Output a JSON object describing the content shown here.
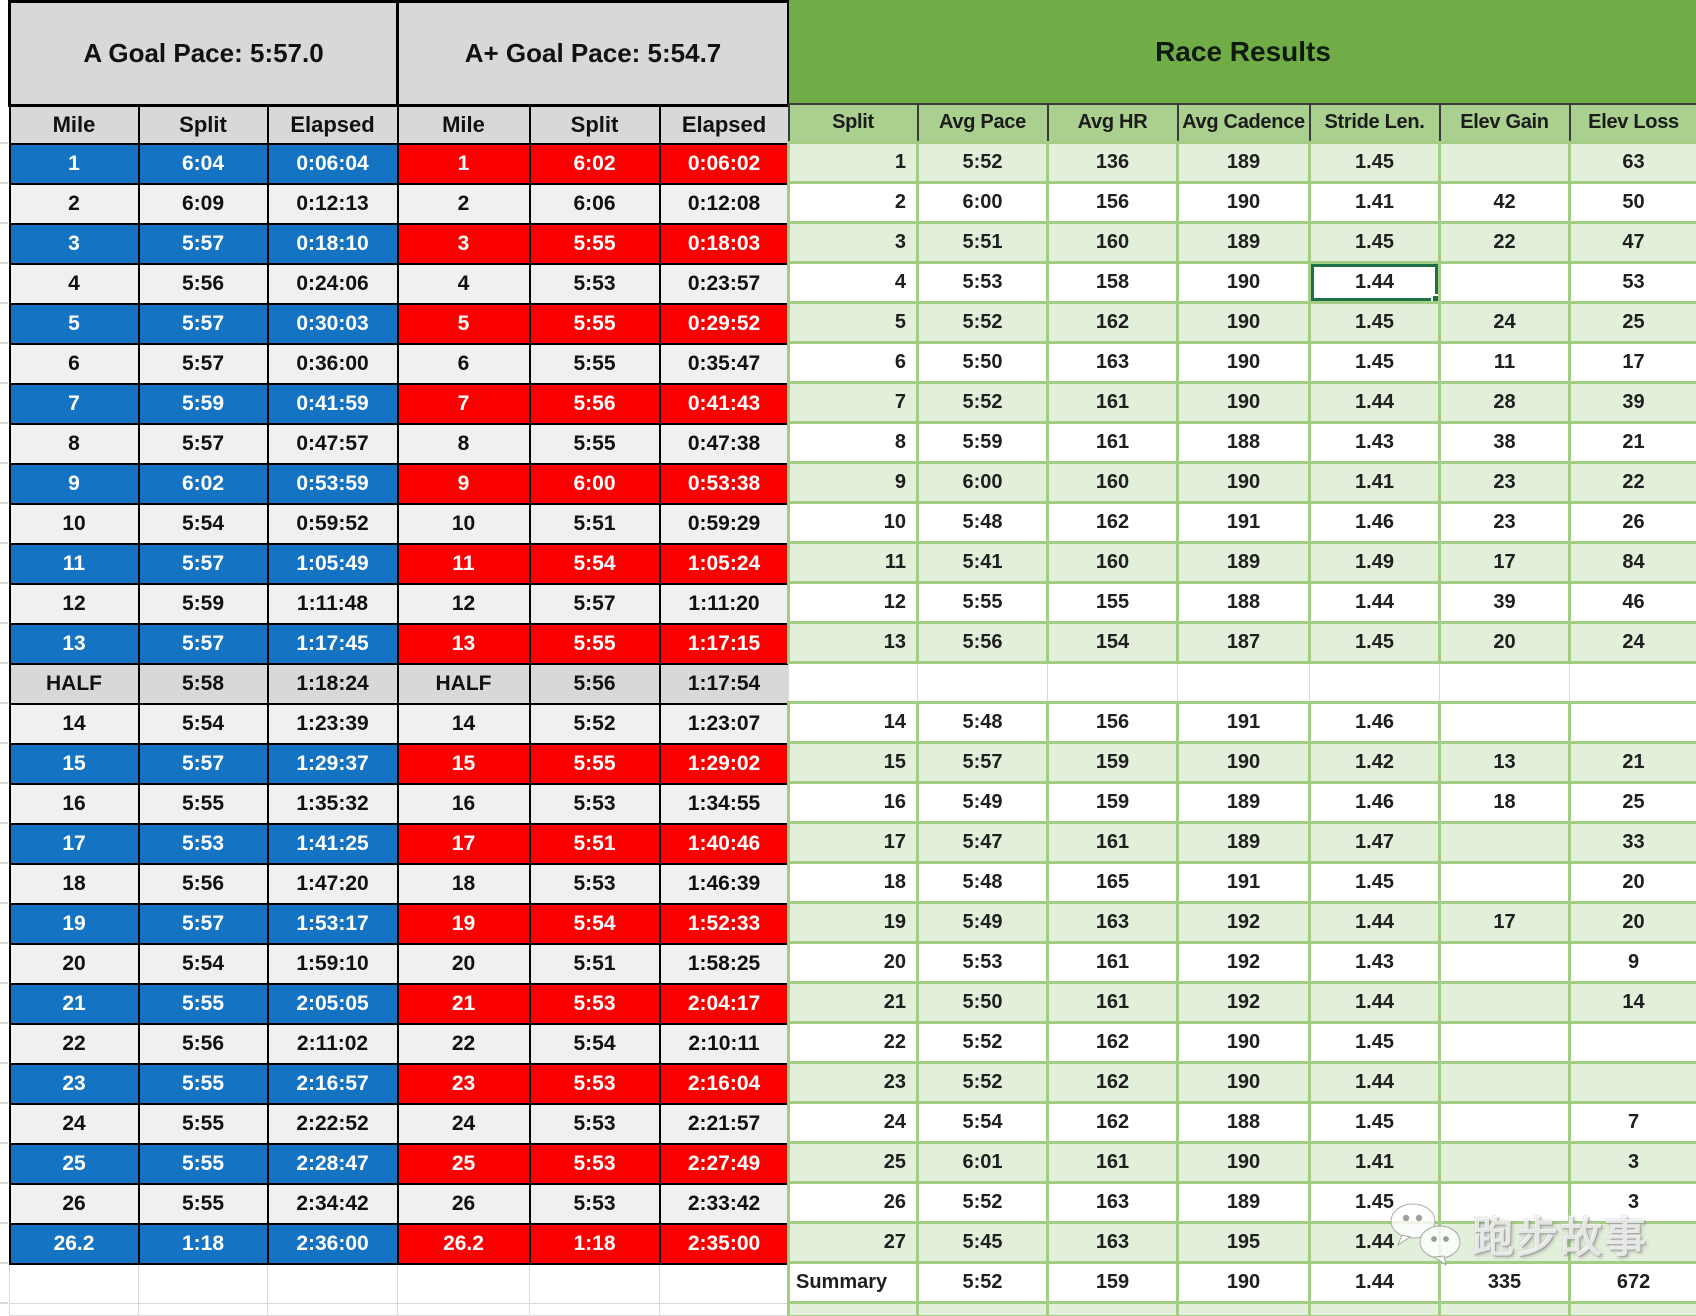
{
  "goal_a": {
    "title": "A Goal Pace: 5:57.0",
    "headers": [
      "Mile",
      "Split",
      "Elapsed"
    ],
    "highlight_color": "#1573C4",
    "rows": [
      {
        "mile": "1",
        "split": "6:04",
        "elapsed": "0:06:04",
        "highlight": true
      },
      {
        "mile": "2",
        "split": "6:09",
        "elapsed": "0:12:13",
        "highlight": false
      },
      {
        "mile": "3",
        "split": "5:57",
        "elapsed": "0:18:10",
        "highlight": true
      },
      {
        "mile": "4",
        "split": "5:56",
        "elapsed": "0:24:06",
        "highlight": false
      },
      {
        "mile": "5",
        "split": "5:57",
        "elapsed": "0:30:03",
        "highlight": true
      },
      {
        "mile": "6",
        "split": "5:57",
        "elapsed": "0:36:00",
        "highlight": false
      },
      {
        "mile": "7",
        "split": "5:59",
        "elapsed": "0:41:59",
        "highlight": true
      },
      {
        "mile": "8",
        "split": "5:57",
        "elapsed": "0:47:57",
        "highlight": false
      },
      {
        "mile": "9",
        "split": "6:02",
        "elapsed": "0:53:59",
        "highlight": true
      },
      {
        "mile": "10",
        "split": "5:54",
        "elapsed": "0:59:52",
        "highlight": false
      },
      {
        "mile": "11",
        "split": "5:57",
        "elapsed": "1:05:49",
        "highlight": true
      },
      {
        "mile": "12",
        "split": "5:59",
        "elapsed": "1:11:48",
        "highlight": false
      },
      {
        "mile": "13",
        "split": "5:57",
        "elapsed": "1:17:45",
        "highlight": true
      },
      {
        "mile": "HALF",
        "split": "5:58",
        "elapsed": "1:18:24",
        "highlight": false,
        "half": true
      },
      {
        "mile": "14",
        "split": "5:54",
        "elapsed": "1:23:39",
        "highlight": false
      },
      {
        "mile": "15",
        "split": "5:57",
        "elapsed": "1:29:37",
        "highlight": true
      },
      {
        "mile": "16",
        "split": "5:55",
        "elapsed": "1:35:32",
        "highlight": false
      },
      {
        "mile": "17",
        "split": "5:53",
        "elapsed": "1:41:25",
        "highlight": true
      },
      {
        "mile": "18",
        "split": "5:56",
        "elapsed": "1:47:20",
        "highlight": false
      },
      {
        "mile": "19",
        "split": "5:57",
        "elapsed": "1:53:17",
        "highlight": true
      },
      {
        "mile": "20",
        "split": "5:54",
        "elapsed": "1:59:10",
        "highlight": false
      },
      {
        "mile": "21",
        "split": "5:55",
        "elapsed": "2:05:05",
        "highlight": true
      },
      {
        "mile": "22",
        "split": "5:56",
        "elapsed": "2:11:02",
        "highlight": false
      },
      {
        "mile": "23",
        "split": "5:55",
        "elapsed": "2:16:57",
        "highlight": true
      },
      {
        "mile": "24",
        "split": "5:55",
        "elapsed": "2:22:52",
        "highlight": false
      },
      {
        "mile": "25",
        "split": "5:55",
        "elapsed": "2:28:47",
        "highlight": true
      },
      {
        "mile": "26",
        "split": "5:55",
        "elapsed": "2:34:42",
        "highlight": false
      },
      {
        "mile": "26.2",
        "split": "1:18",
        "elapsed": "2:36:00",
        "highlight": true
      }
    ]
  },
  "goal_aplus": {
    "title": "A+ Goal Pace: 5:54.7",
    "headers": [
      "Mile",
      "Split",
      "Elapsed"
    ],
    "highlight_color": "#FB0000",
    "rows": [
      {
        "mile": "1",
        "split": "6:02",
        "elapsed": "0:06:02",
        "highlight": true
      },
      {
        "mile": "2",
        "split": "6:06",
        "elapsed": "0:12:08",
        "highlight": false
      },
      {
        "mile": "3",
        "split": "5:55",
        "elapsed": "0:18:03",
        "highlight": true
      },
      {
        "mile": "4",
        "split": "5:53",
        "elapsed": "0:23:57",
        "highlight": false
      },
      {
        "mile": "5",
        "split": "5:55",
        "elapsed": "0:29:52",
        "highlight": true
      },
      {
        "mile": "6",
        "split": "5:55",
        "elapsed": "0:35:47",
        "highlight": false
      },
      {
        "mile": "7",
        "split": "5:56",
        "elapsed": "0:41:43",
        "highlight": true
      },
      {
        "mile": "8",
        "split": "5:55",
        "elapsed": "0:47:38",
        "highlight": false
      },
      {
        "mile": "9",
        "split": "6:00",
        "elapsed": "0:53:38",
        "highlight": true
      },
      {
        "mile": "10",
        "split": "5:51",
        "elapsed": "0:59:29",
        "highlight": false
      },
      {
        "mile": "11",
        "split": "5:54",
        "elapsed": "1:05:24",
        "highlight": true
      },
      {
        "mile": "12",
        "split": "5:57",
        "elapsed": "1:11:20",
        "highlight": false
      },
      {
        "mile": "13",
        "split": "5:55",
        "elapsed": "1:17:15",
        "highlight": true
      },
      {
        "mile": "HALF",
        "split": "5:56",
        "elapsed": "1:17:54",
        "highlight": false,
        "half": true
      },
      {
        "mile": "14",
        "split": "5:52",
        "elapsed": "1:23:07",
        "highlight": false
      },
      {
        "mile": "15",
        "split": "5:55",
        "elapsed": "1:29:02",
        "highlight": true
      },
      {
        "mile": "16",
        "split": "5:53",
        "elapsed": "1:34:55",
        "highlight": false
      },
      {
        "mile": "17",
        "split": "5:51",
        "elapsed": "1:40:46",
        "highlight": true
      },
      {
        "mile": "18",
        "split": "5:53",
        "elapsed": "1:46:39",
        "highlight": false
      },
      {
        "mile": "19",
        "split": "5:54",
        "elapsed": "1:52:33",
        "highlight": true
      },
      {
        "mile": "20",
        "split": "5:51",
        "elapsed": "1:58:25",
        "highlight": false
      },
      {
        "mile": "21",
        "split": "5:53",
        "elapsed": "2:04:17",
        "highlight": true
      },
      {
        "mile": "22",
        "split": "5:54",
        "elapsed": "2:10:11",
        "highlight": false
      },
      {
        "mile": "23",
        "split": "5:53",
        "elapsed": "2:16:04",
        "highlight": true
      },
      {
        "mile": "24",
        "split": "5:53",
        "elapsed": "2:21:57",
        "highlight": false
      },
      {
        "mile": "25",
        "split": "5:53",
        "elapsed": "2:27:49",
        "highlight": true
      },
      {
        "mile": "26",
        "split": "5:53",
        "elapsed": "2:33:42",
        "highlight": false
      },
      {
        "mile": "26.2",
        "split": "1:18",
        "elapsed": "2:35:00",
        "highlight": true
      }
    ]
  },
  "race_results": {
    "title": "Race Results",
    "headers": [
      "Split",
      "Avg Pace",
      "Avg HR",
      "Avg Cadence",
      "Stride Len.",
      "Elev Gain",
      "Elev Loss"
    ],
    "selected_cell": {
      "split": "4",
      "column": "stride_len"
    },
    "rows": [
      {
        "split": "1",
        "avg_pace": "5:52",
        "avg_hr": "136",
        "avg_cadence": "189",
        "stride_len": "1.45",
        "elev_gain": "",
        "elev_loss": "63",
        "shaded": true
      },
      {
        "split": "2",
        "avg_pace": "6:00",
        "avg_hr": "156",
        "avg_cadence": "190",
        "stride_len": "1.41",
        "elev_gain": "42",
        "elev_loss": "50",
        "shaded": false
      },
      {
        "split": "3",
        "avg_pace": "5:51",
        "avg_hr": "160",
        "avg_cadence": "189",
        "stride_len": "1.45",
        "elev_gain": "22",
        "elev_loss": "47",
        "shaded": true
      },
      {
        "split": "4",
        "avg_pace": "5:53",
        "avg_hr": "158",
        "avg_cadence": "190",
        "stride_len": "1.44",
        "elev_gain": "",
        "elev_loss": "53",
        "shaded": false
      },
      {
        "split": "5",
        "avg_pace": "5:52",
        "avg_hr": "162",
        "avg_cadence": "190",
        "stride_len": "1.45",
        "elev_gain": "24",
        "elev_loss": "25",
        "shaded": true
      },
      {
        "split": "6",
        "avg_pace": "5:50",
        "avg_hr": "163",
        "avg_cadence": "190",
        "stride_len": "1.45",
        "elev_gain": "11",
        "elev_loss": "17",
        "shaded": false
      },
      {
        "split": "7",
        "avg_pace": "5:52",
        "avg_hr": "161",
        "avg_cadence": "190",
        "stride_len": "1.44",
        "elev_gain": "28",
        "elev_loss": "39",
        "shaded": true
      },
      {
        "split": "8",
        "avg_pace": "5:59",
        "avg_hr": "161",
        "avg_cadence": "188",
        "stride_len": "1.43",
        "elev_gain": "38",
        "elev_loss": "21",
        "shaded": false
      },
      {
        "split": "9",
        "avg_pace": "6:00",
        "avg_hr": "160",
        "avg_cadence": "190",
        "stride_len": "1.41",
        "elev_gain": "23",
        "elev_loss": "22",
        "shaded": true
      },
      {
        "split": "10",
        "avg_pace": "5:48",
        "avg_hr": "162",
        "avg_cadence": "191",
        "stride_len": "1.46",
        "elev_gain": "23",
        "elev_loss": "26",
        "shaded": false
      },
      {
        "split": "11",
        "avg_pace": "5:41",
        "avg_hr": "160",
        "avg_cadence": "189",
        "stride_len": "1.49",
        "elev_gain": "17",
        "elev_loss": "84",
        "shaded": true
      },
      {
        "split": "12",
        "avg_pace": "5:55",
        "avg_hr": "155",
        "avg_cadence": "188",
        "stride_len": "1.44",
        "elev_gain": "39",
        "elev_loss": "46",
        "shaded": false
      },
      {
        "split": "13",
        "avg_pace": "5:56",
        "avg_hr": "154",
        "avg_cadence": "187",
        "stride_len": "1.45",
        "elev_gain": "20",
        "elev_loss": "24",
        "shaded": true
      },
      {
        "blank": true
      },
      {
        "split": "14",
        "avg_pace": "5:48",
        "avg_hr": "156",
        "avg_cadence": "191",
        "stride_len": "1.46",
        "elev_gain": "",
        "elev_loss": "",
        "shaded": false
      },
      {
        "split": "15",
        "avg_pace": "5:57",
        "avg_hr": "159",
        "avg_cadence": "190",
        "stride_len": "1.42",
        "elev_gain": "13",
        "elev_loss": "21",
        "shaded": true
      },
      {
        "split": "16",
        "avg_pace": "5:49",
        "avg_hr": "159",
        "avg_cadence": "189",
        "stride_len": "1.46",
        "elev_gain": "18",
        "elev_loss": "25",
        "shaded": false
      },
      {
        "split": "17",
        "avg_pace": "5:47",
        "avg_hr": "161",
        "avg_cadence": "189",
        "stride_len": "1.47",
        "elev_gain": "",
        "elev_loss": "33",
        "shaded": true
      },
      {
        "split": "18",
        "avg_pace": "5:48",
        "avg_hr": "165",
        "avg_cadence": "191",
        "stride_len": "1.45",
        "elev_gain": "",
        "elev_loss": "20",
        "shaded": false
      },
      {
        "split": "19",
        "avg_pace": "5:49",
        "avg_hr": "163",
        "avg_cadence": "192",
        "stride_len": "1.44",
        "elev_gain": "17",
        "elev_loss": "20",
        "shaded": true
      },
      {
        "split": "20",
        "avg_pace": "5:53",
        "avg_hr": "161",
        "avg_cadence": "192",
        "stride_len": "1.43",
        "elev_gain": "",
        "elev_loss": "9",
        "shaded": false
      },
      {
        "split": "21",
        "avg_pace": "5:50",
        "avg_hr": "161",
        "avg_cadence": "192",
        "stride_len": "1.44",
        "elev_gain": "",
        "elev_loss": "14",
        "shaded": true
      },
      {
        "split": "22",
        "avg_pace": "5:52",
        "avg_hr": "162",
        "avg_cadence": "190",
        "stride_len": "1.45",
        "elev_gain": "",
        "elev_loss": "",
        "shaded": false
      },
      {
        "split": "23",
        "avg_pace": "5:52",
        "avg_hr": "162",
        "avg_cadence": "190",
        "stride_len": "1.44",
        "elev_gain": "",
        "elev_loss": "",
        "shaded": true
      },
      {
        "split": "24",
        "avg_pace": "5:54",
        "avg_hr": "162",
        "avg_cadence": "188",
        "stride_len": "1.45",
        "elev_gain": "",
        "elev_loss": "7",
        "shaded": false
      },
      {
        "split": "25",
        "avg_pace": "6:01",
        "avg_hr": "161",
        "avg_cadence": "190",
        "stride_len": "1.41",
        "elev_gain": "",
        "elev_loss": "3",
        "shaded": true
      },
      {
        "split": "26",
        "avg_pace": "5:52",
        "avg_hr": "163",
        "avg_cadence": "189",
        "stride_len": "1.45",
        "elev_gain": "",
        "elev_loss": "3",
        "shaded": false
      },
      {
        "split": "27",
        "avg_pace": "5:45",
        "avg_hr": "163",
        "avg_cadence": "195",
        "stride_len": "1.44",
        "elev_gain": "",
        "elev_loss": "",
        "shaded": true
      }
    ],
    "summary": {
      "label": "Summary",
      "avg_pace": "5:52",
      "avg_hr": "159",
      "avg_cadence": "190",
      "stride_len": "1.44",
      "elev_gain": "335",
      "elev_loss": "672"
    }
  },
  "watermark": {
    "text": "跑步故事",
    "icon": "wechat-icon"
  },
  "colors": {
    "blue_highlight": "#1573C4",
    "red_highlight": "#FB0000",
    "gray_band": "#D8D8D8",
    "light_row": "#F0F0F0",
    "green_band": "#71AD47",
    "green_header": "#A9D08E",
    "green_row": "#E2EFDA",
    "green_gridline": "#A3CC84",
    "selection_green": "#1E7145"
  }
}
